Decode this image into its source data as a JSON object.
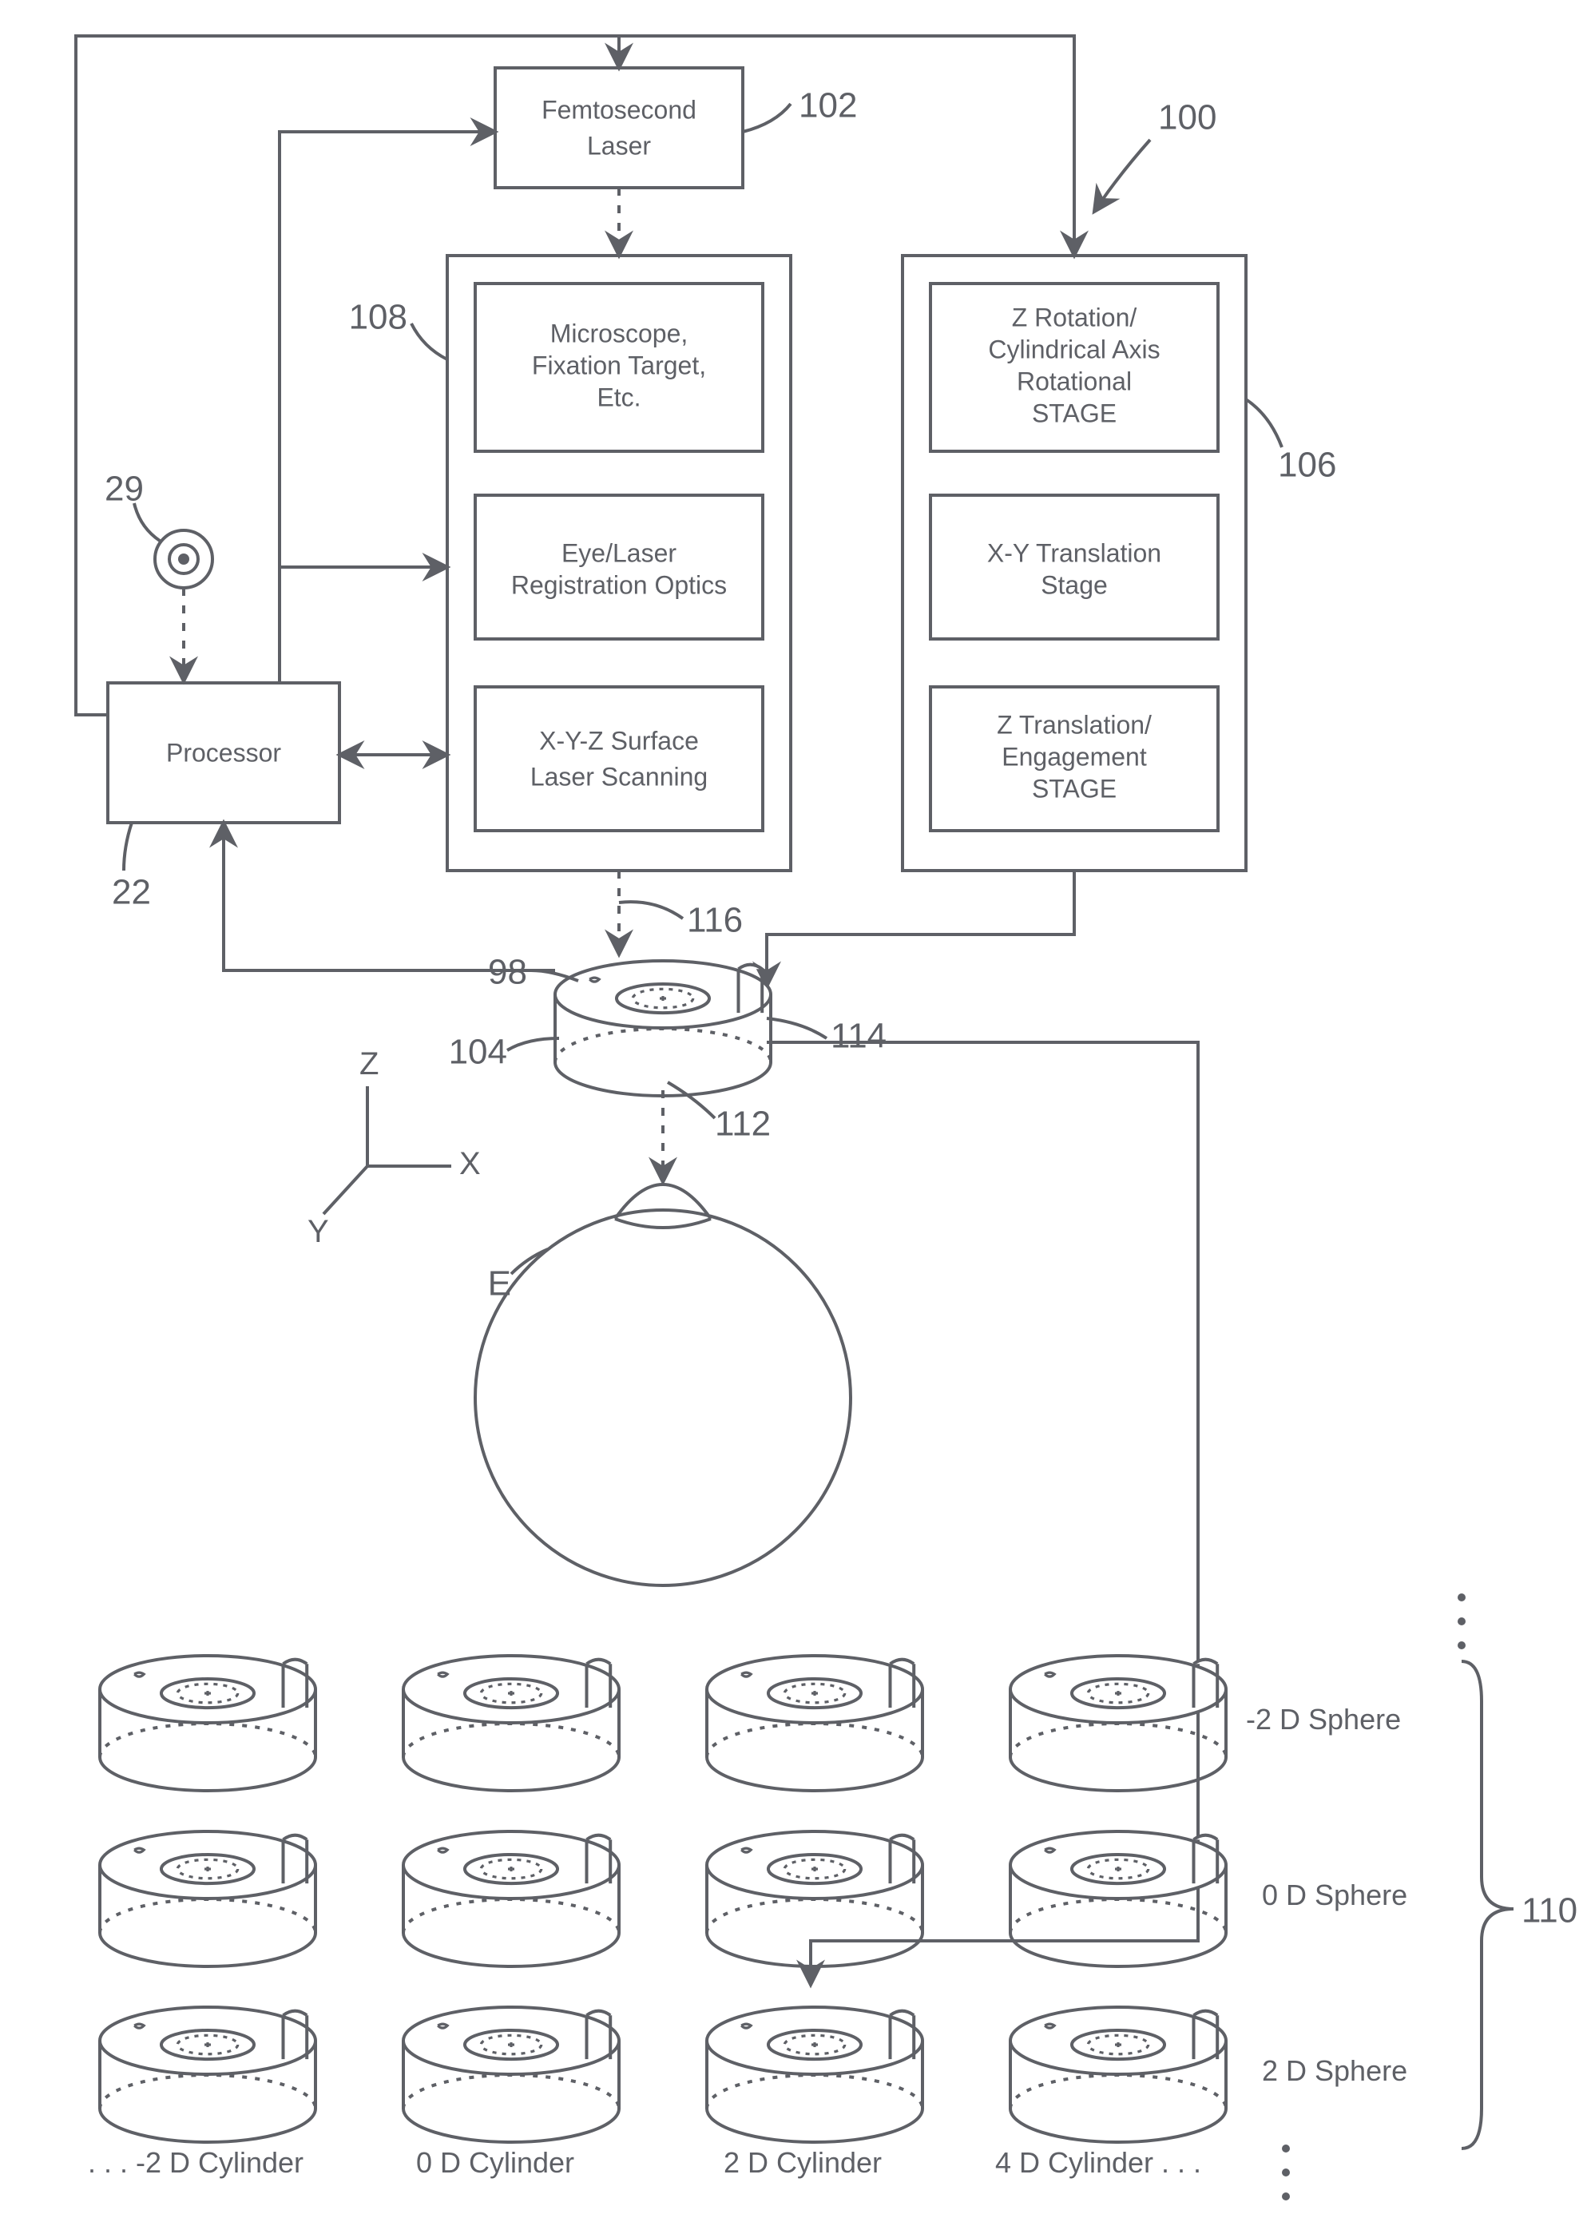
{
  "stroke_color": "#5e6066",
  "stroke_width": 4,
  "dashed_pattern": "10 12",
  "font_family": "Arial, Helvetica, sans-serif",
  "box_font_size_pt": 24,
  "ref_font_size_pt": 33,
  "top_block": {
    "femto_laser": {
      "l1": "Femtosecond",
      "l2": "Laser",
      "ref": "102"
    },
    "left_group": {
      "ref": "108",
      "b1": {
        "l1": "Microscope,",
        "l2": "Fixation Target,",
        "l3": "Etc."
      },
      "b2": {
        "l1": "Eye/Laser",
        "l2": "Registration Optics"
      },
      "b3": {
        "l1": "X-Y-Z Surface",
        "l2": "Laser Scanning"
      }
    },
    "right_group": {
      "ref": "106",
      "b1": {
        "l1": "Z Rotation/",
        "l2": "Cylindrical Axis",
        "l3": "Rotational",
        "l4": "STAGE"
      },
      "b2": {
        "l1": "X-Y Translation",
        "l2": "Stage"
      },
      "b3": {
        "l1": "Z Translation/",
        "l2": "Engagement",
        "l3": "STAGE"
      }
    },
    "processor": {
      "label": "Processor",
      "ref": "22"
    },
    "input_icon": {
      "ref": "29"
    },
    "system_ref": "100"
  },
  "interface": {
    "ref_main": "116",
    "ref_left": "98",
    "ref_body": "104",
    "ref_lens": "112",
    "ref_tab_line": "114"
  },
  "eye": {
    "label": "E"
  },
  "axes": {
    "x": "X",
    "y": "Y",
    "z": "Z"
  },
  "grid": {
    "ref": "110",
    "row_labels": [
      "-2 D Sphere",
      "0 D Sphere",
      "2 D Sphere"
    ],
    "col_labels": [
      ". . .  -2 D Cylinder",
      "0 D Cylinder",
      "2 D Cylinder",
      "4 D Cylinder  . . ."
    ]
  }
}
